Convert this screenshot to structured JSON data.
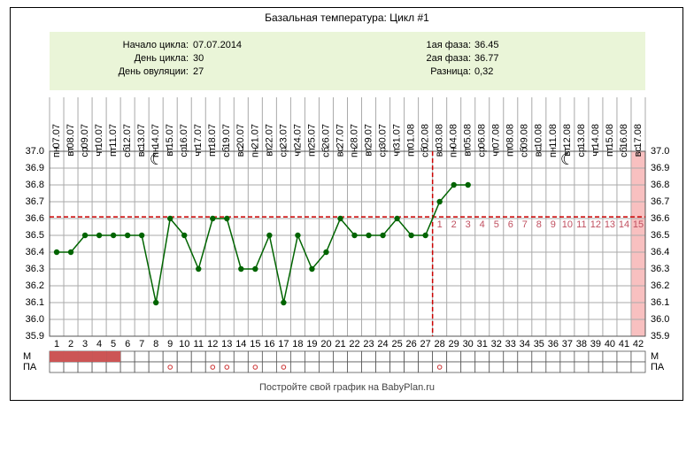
{
  "chart_data": {
    "type": "line",
    "title": "Базальная температура: Цикл #1",
    "info": {
      "start": {
        "label": "Начало цикла:",
        "value": "07.07.2014"
      },
      "cycle_day": {
        "label": "День цикла:",
        "value": 30
      },
      "ovulation_day": {
        "label": "День овуляции:",
        "value": 27
      },
      "phase1": {
        "label": "1ая фаза:",
        "value": 36.45
      },
      "phase2": {
        "label": "2ая фаза:",
        "value": 36.77
      },
      "difference": {
        "label": "Разница:",
        "value": {
          "value": 0.32,
          "label": "0,32"
        }
      }
    },
    "days": [
      1,
      2,
      3,
      4,
      5,
      6,
      7,
      8,
      9,
      10,
      11,
      12,
      13,
      14,
      15,
      16,
      17,
      18,
      19,
      20,
      21,
      22,
      23,
      24,
      25,
      26,
      27,
      28,
      29,
      30,
      31,
      32,
      33,
      34,
      35,
      36,
      37,
      38,
      39,
      40,
      41,
      42
    ],
    "dates": [
      "07.07",
      "08.07",
      "09.07",
      "10.07",
      "11.07",
      "12.07",
      "13.07",
      "14.07",
      "15.07",
      "16.07",
      "17.07",
      "18.07",
      "19.07",
      "20.07",
      "21.07",
      "22.07",
      "23.07",
      "24.07",
      "25.07",
      "26.07",
      "27.07",
      "28.07",
      "29.07",
      "30.07",
      "31.07",
      "01.08",
      "02.08",
      "03.08",
      "04.08",
      "05.08",
      "06.08",
      "07.08",
      "08.08",
      "09.08",
      "10.08",
      "11.08",
      "12.08",
      "13.08",
      "14.08",
      "15.08",
      "16.08",
      "17.08"
    ],
    "weekdays": [
      "пн",
      "вт",
      "ср",
      "чт",
      "пт",
      "сб",
      "вс",
      "пн",
      "вт",
      "ср",
      "чт",
      "пт",
      "сб",
      "вс",
      "пн",
      "вт",
      "ср",
      "чт",
      "пт",
      "сб",
      "вс",
      "пн",
      "вт",
      "ср",
      "чт",
      "пт",
      "сб",
      "вс",
      "пн",
      "вт",
      "ср",
      "чт",
      "пт",
      "сб",
      "вс",
      "пн",
      "вт",
      "ср",
      "чт",
      "пт",
      "сб",
      "вс"
    ],
    "values": [
      36.4,
      36.4,
      36.5,
      36.5,
      36.5,
      36.5,
      36.5,
      36.1,
      36.6,
      36.5,
      36.3,
      36.6,
      36.6,
      36.3,
      36.3,
      36.5,
      36.1,
      36.5,
      36.3,
      36.4,
      36.6,
      36.5,
      36.5,
      36.5,
      36.6,
      36.5,
      36.5,
      36.7,
      36.8,
      36.8,
      null,
      null,
      null,
      null,
      null,
      null,
      null,
      null,
      null,
      null,
      null,
      null
    ],
    "color": "#006400",
    "coverline": 36.61,
    "coverline_color": "#cc0000",
    "luteal_labels": [
      1,
      2,
      3,
      4,
      5,
      6,
      7,
      8,
      9,
      10,
      11,
      12,
      13,
      14,
      15
    ],
    "ylim": [
      35.9,
      37.0
    ],
    "yticks": [
      {
        "value": 35.9,
        "label": "35.9"
      },
      {
        "value": 36.0,
        "label": "36.0"
      },
      36.1,
      36.2,
      36.3,
      36.4,
      36.5,
      36.6,
      36.7,
      36.8,
      36.9,
      {
        "value": 37.0,
        "label": "37.0"
      }
    ],
    "grid": true,
    "m_label": "М",
    "pa_label": "ПА",
    "menstruation_days": [
      1,
      2,
      3,
      4,
      5
    ],
    "pa_days": [
      9,
      12,
      13,
      15,
      17,
      28
    ],
    "footer": "Постройте свой график на BabyPlan.ru"
  }
}
